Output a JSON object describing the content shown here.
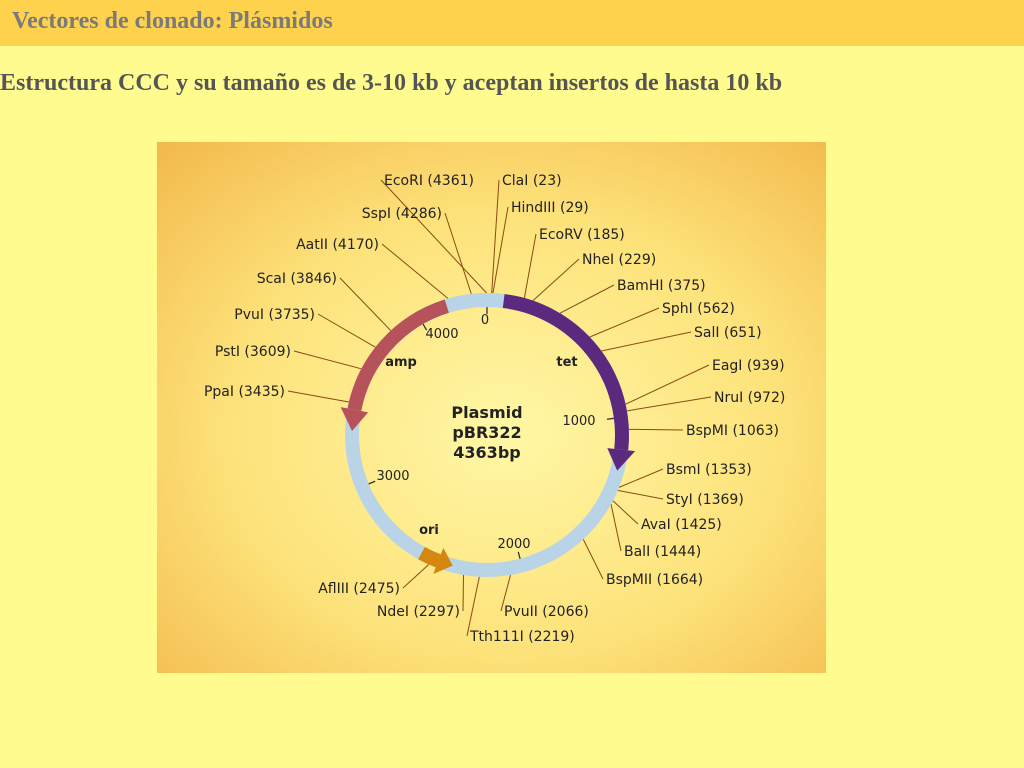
{
  "slide": {
    "title": "Vectores de clonado: Plásmidos",
    "subtitle": "Estructura CCC y su tamaño es de 3-10 kb y aceptan insertos de hasta 10 kb"
  },
  "plasmid": {
    "name_line1": "Plasmid",
    "name_line2": "pBR322",
    "size_label": "4363bp",
    "total_bp": 4363,
    "ticks": [
      {
        "label": "0",
        "bp": 0
      },
      {
        "label": "1000",
        "bp": 1000
      },
      {
        "label": "2000",
        "bp": 2000
      },
      {
        "label": "3000",
        "bp": 3000
      },
      {
        "label": "4000",
        "bp": 4000
      }
    ],
    "genes": [
      {
        "name": "tet<sup>r</sup>",
        "label": "tetr",
        "start_bp": 86,
        "end_bp": 1276,
        "direction": "clockwise",
        "color": "#5b2a7e"
      },
      {
        "name": "amp<sup>r</sup>",
        "label": "ampr",
        "start_bp": 4153,
        "end_bp": 3293,
        "direction": "counterclockwise",
        "color": "#b5525a"
      },
      {
        "name": "ori",
        "label": "ori",
        "start_bp": 2533,
        "end_bp": 2360,
        "direction": "counterclockwise",
        "color": "#d4860e"
      }
    ],
    "sites": [
      {
        "label": "EcoRI (4361)"
      },
      {
        "label": "ClaI (23)"
      },
      {
        "label": "HindIII (29)"
      },
      {
        "label": "EcoRV (185)"
      },
      {
        "label": "NheI (229)"
      },
      {
        "label": "BamHI (375)"
      },
      {
        "label": "SphI (562)"
      },
      {
        "label": "SalI (651)"
      },
      {
        "label": "EagI (939)"
      },
      {
        "label": "NruI (972)"
      },
      {
        "label": "BspMI (1063)"
      },
      {
        "label": "BsmI (1353)"
      },
      {
        "label": "StyI (1369)"
      },
      {
        "label": "AvaI (1425)"
      },
      {
        "label": "BalI (1444)"
      },
      {
        "label": "BspMII (1664)"
      },
      {
        "label": "PvuII (2066)"
      },
      {
        "label": "Tth111I (2219)"
      },
      {
        "label": "NdeI (2297)"
      },
      {
        "label": "AflIII (2475)"
      },
      {
        "label": "PpaI (3435)"
      },
      {
        "label": "PstI (3609)"
      },
      {
        "label": "PvuI (3735)"
      },
      {
        "label": "ScaI (3846)"
      },
      {
        "label": "AatII (4170)"
      },
      {
        "label": "SspI (4286)"
      }
    ],
    "colors": {
      "backbone": "#b8d4e6",
      "leader_line": "#8a4a12",
      "text": "#222222"
    }
  }
}
